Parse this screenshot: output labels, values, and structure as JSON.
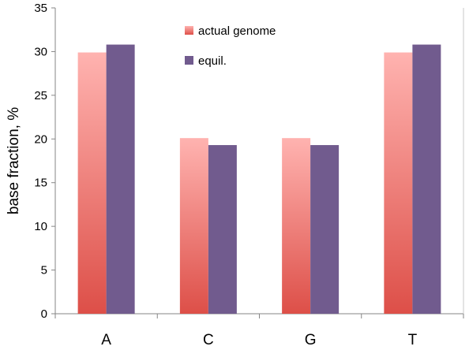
{
  "chart_data": {
    "type": "bar",
    "categories": [
      "A",
      "C",
      "G",
      "T"
    ],
    "series": [
      {
        "name": "actual genome",
        "values": [
          29.9,
          20.1,
          20.1,
          29.9
        ]
      },
      {
        "name": "equil.",
        "values": [
          30.8,
          19.3,
          19.3,
          30.8
        ]
      }
    ],
    "title": "",
    "xlabel": "",
    "ylabel": "base fraction, %",
    "ylim": [
      0,
      35
    ],
    "yticks": [
      "0",
      "5",
      "10",
      "15",
      "20",
      "25",
      "30",
      "35"
    ],
    "grid": false,
    "legend_position": "top-center",
    "colors": {
      "actual_top": "#ffb3b0",
      "actual_bottom": "#dd4f48",
      "equil": "#715b8e",
      "axis": "#868686"
    }
  }
}
